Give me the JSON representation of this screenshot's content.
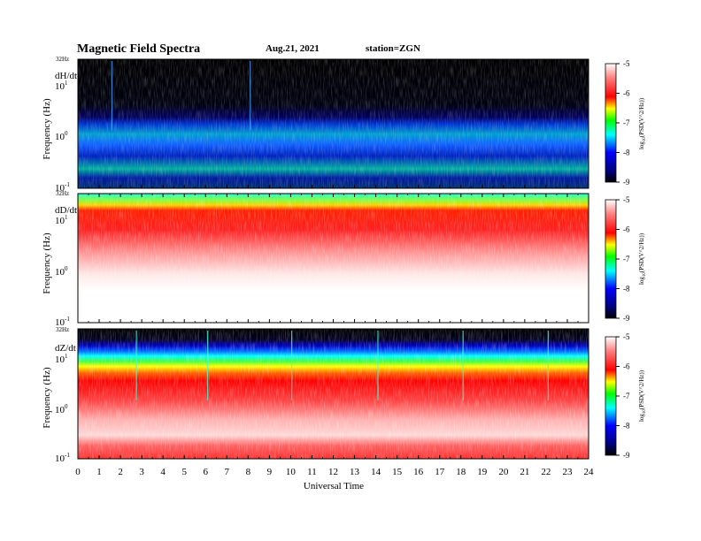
{
  "header": {
    "title": "Magnetic  Field  Spectra",
    "date": "Aug.21, 2021",
    "station": "station=ZGN"
  },
  "colors": {
    "colormap": [
      "#000000",
      "#000080",
      "#0000ff",
      "#00ffff",
      "#00ff00",
      "#ffff00",
      "#ff0000",
      "#ffffff"
    ]
  },
  "chart_data": [
    {
      "type": "heatmap",
      "title": "",
      "panel_label": "dH/dt",
      "ylabel": "Frequency  (Hz)",
      "top_label": "32Hz",
      "y_ticks": [
        "10",
        "10",
        "10"
      ],
      "y_tick_exponents": [
        "1",
        "0",
        "-1"
      ],
      "y_scale": "log",
      "ylim": [
        0.1,
        32
      ],
      "colorbar": {
        "ticks": [
          "-5",
          "-6",
          "-7",
          "-8",
          "-9"
        ],
        "label": "log10(PSD(V^2/Hz))",
        "range": [
          -9,
          -5
        ]
      }
    },
    {
      "type": "heatmap",
      "title": "",
      "panel_label": "dD/dt",
      "ylabel": "Frequency  (Hz)",
      "top_label": "32Hz",
      "y_ticks": [
        "10",
        "10",
        "10"
      ],
      "y_tick_exponents": [
        "1",
        "0",
        "-1"
      ],
      "y_scale": "log",
      "ylim": [
        0.1,
        32
      ],
      "colorbar": {
        "ticks": [
          "-5",
          "-6",
          "-7",
          "-8",
          "-9"
        ],
        "label": "log10(PSD(V^2/Hz))",
        "range": [
          -9,
          -5
        ]
      }
    },
    {
      "type": "heatmap",
      "title": "",
      "panel_label": "dZ/dt",
      "ylabel": "Frequency  (Hz)",
      "top_label": "32Hz",
      "y_ticks": [
        "10",
        "10",
        "10"
      ],
      "y_tick_exponents": [
        "1",
        "0",
        "-1"
      ],
      "y_scale": "log",
      "ylim": [
        0.1,
        32
      ],
      "colorbar": {
        "ticks": [
          "-5",
          "-6",
          "-7",
          "-8",
          "-9"
        ],
        "label": "log10(PSD(V^2/Hz))",
        "range": [
          -9,
          -5
        ]
      },
      "xlabel": "Universal  Time",
      "x_ticks": [
        "0",
        "1",
        "2",
        "3",
        "4",
        "5",
        "6",
        "7",
        "8",
        "9",
        "10",
        "11",
        "12",
        "13",
        "14",
        "15",
        "16",
        "17",
        "18",
        "19",
        "20",
        "21",
        "22",
        "23",
        "24"
      ],
      "xlim": [
        0,
        24
      ]
    }
  ]
}
